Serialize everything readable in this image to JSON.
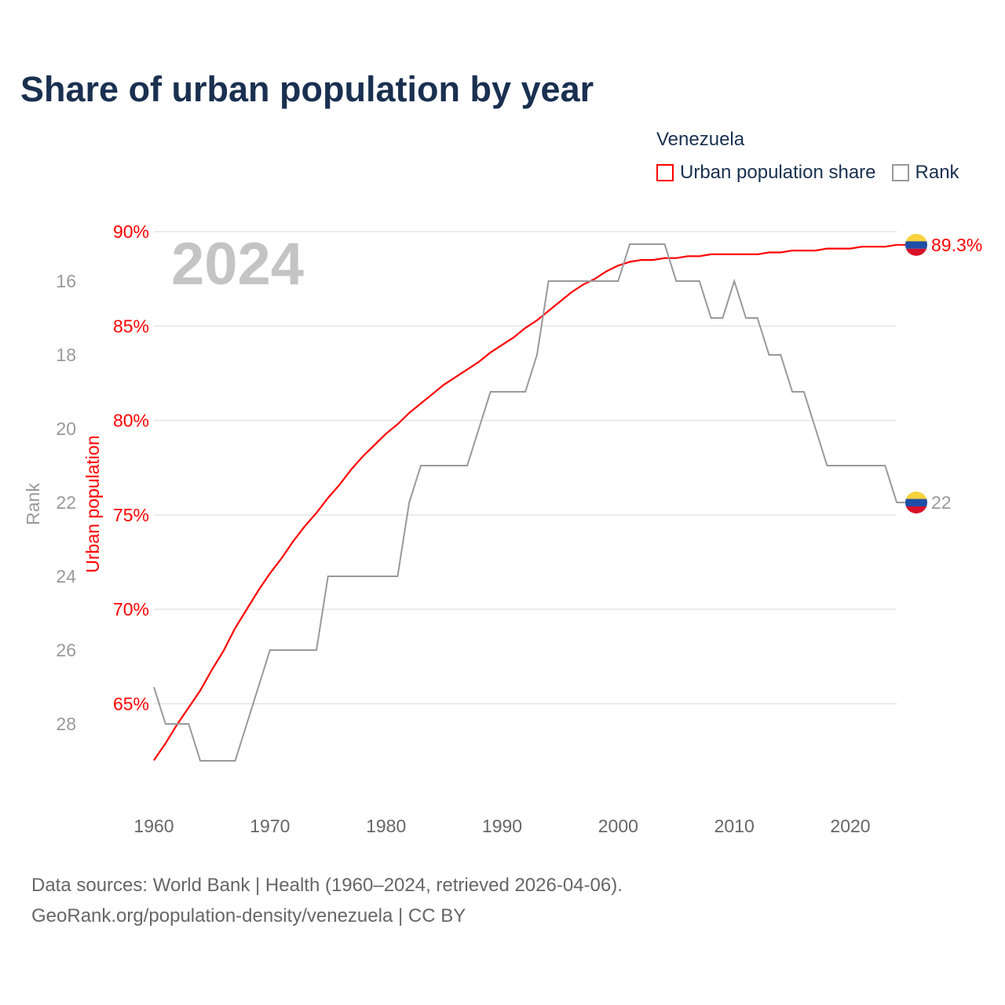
{
  "title": "Share of urban population by year",
  "legend": {
    "country": "Venezuela",
    "items": [
      {
        "label": "Urban population share",
        "color": "#ff0000"
      },
      {
        "label": "Rank",
        "color": "#999999"
      }
    ]
  },
  "year_watermark": "2024",
  "end_labels": {
    "urban": "89.3%",
    "rank": "22"
  },
  "footer": {
    "line1": "Data sources: World Bank | Health (1960–2024, retrieved 2026-04-06).",
    "line2": "GeoRank.org/population-density/venezuela | CC BY"
  },
  "chart_data": {
    "type": "line",
    "title": "Share of urban population by year",
    "xlabel": "",
    "ylabel_left_outer": "Rank",
    "ylabel_left_inner": "Urban population",
    "x_ticks": [
      "1960",
      "1970",
      "1980",
      "1990",
      "2000",
      "2010",
      "2020"
    ],
    "urban_ticks": [
      "65%",
      "70%",
      "75%",
      "80%",
      "85%",
      "90%"
    ],
    "rank_ticks": [
      "16",
      "18",
      "20",
      "22",
      "24",
      "26",
      "28"
    ],
    "urban_range": [
      62,
      90
    ],
    "rank_range": [
      14.7,
      30
    ],
    "x": [
      1960,
      1961,
      1962,
      1963,
      1964,
      1965,
      1966,
      1967,
      1968,
      1969,
      1970,
      1971,
      1972,
      1973,
      1974,
      1975,
      1976,
      1977,
      1978,
      1979,
      1980,
      1981,
      1982,
      1983,
      1984,
      1985,
      1986,
      1987,
      1988,
      1989,
      1990,
      1991,
      1992,
      1993,
      1994,
      1995,
      1996,
      1997,
      1998,
      1999,
      2000,
      2001,
      2002,
      2003,
      2004,
      2005,
      2006,
      2007,
      2008,
      2009,
      2010,
      2011,
      2012,
      2013,
      2014,
      2015,
      2016,
      2017,
      2018,
      2019,
      2020,
      2021,
      2022,
      2023,
      2024
    ],
    "series": [
      {
        "name": "Urban population share",
        "color": "#ff0000",
        "axis": "urban",
        "values": [
          62.0,
          62.9,
          63.9,
          64.8,
          65.7,
          66.8,
          67.8,
          69.0,
          70.0,
          71.0,
          71.9,
          72.7,
          73.6,
          74.4,
          75.1,
          75.9,
          76.6,
          77.4,
          78.1,
          78.7,
          79.3,
          79.8,
          80.4,
          80.9,
          81.4,
          81.9,
          82.3,
          82.7,
          83.1,
          83.6,
          84.0,
          84.4,
          84.9,
          85.3,
          85.8,
          86.3,
          86.8,
          87.2,
          87.5,
          87.9,
          88.2,
          88.4,
          88.5,
          88.5,
          88.6,
          88.6,
          88.7,
          88.7,
          88.8,
          88.8,
          88.8,
          88.8,
          88.8,
          88.9,
          88.9,
          89.0,
          89.0,
          89.0,
          89.1,
          89.1,
          89.1,
          89.2,
          89.2,
          89.2,
          89.3
        ]
      },
      {
        "name": "Rank",
        "color": "#999999",
        "axis": "rank",
        "values": [
          27,
          28,
          28,
          28,
          29,
          29,
          29,
          29,
          28,
          27,
          26,
          26,
          26,
          26,
          26,
          24,
          24,
          24,
          24,
          24,
          24,
          24,
          22,
          21,
          21,
          21,
          21,
          21,
          20,
          19,
          19,
          19,
          19,
          18,
          16,
          16,
          16,
          16,
          16,
          16,
          16,
          15,
          15,
          15,
          15,
          16,
          16,
          16,
          17,
          17,
          16,
          17,
          17,
          18,
          18,
          19,
          19,
          20,
          21,
          21,
          21,
          21,
          21,
          21,
          22
        ]
      }
    ]
  }
}
